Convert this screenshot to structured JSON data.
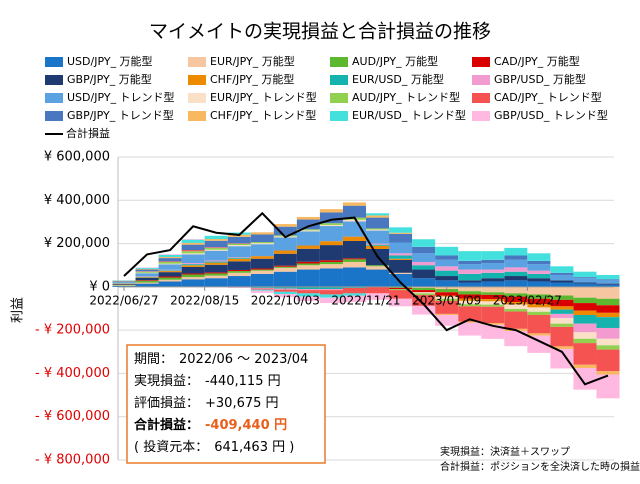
{
  "chart_data": {
    "type": "stacked-bar",
    "title": "マイメイトの実現損益と合計損益の推移",
    "y_label": "利益",
    "x": [
      "2022/06/27",
      "2022/07/11",
      "2022/07/25",
      "2022/08/08",
      "2022/08/22",
      "2022/09/05",
      "2022/09/19",
      "2022/10/03",
      "2022/10/17",
      "2022/10/31",
      "2022/11/14",
      "2022/11/28",
      "2022/12/12",
      "2022/12/26",
      "2023/01/09",
      "2023/01/23",
      "2023/02/06",
      "2023/02/20",
      "2023/03/06",
      "2023/03/20",
      "2023/04/03",
      "2023/04/17"
    ],
    "xticks": [
      "2022/06/27",
      "2022/08/15",
      "2022/10/03",
      "2022/11/21",
      "2023/01/09",
      "2023/02/27"
    ],
    "ylim": [
      -800000,
      600000
    ],
    "yticks": [
      {
        "value": 600000,
        "label": "¥ 600,000"
      },
      {
        "value": 400000,
        "label": "¥ 400,000"
      },
      {
        "value": 200000,
        "label": "¥ 200,000"
      },
      {
        "value": 0,
        "label": "¥ 0"
      },
      {
        "value": -200000,
        "label": "- ¥ 200,000"
      },
      {
        "value": -400000,
        "label": "- ¥ 400,000"
      },
      {
        "value": -600000,
        "label": "- ¥ 600,000"
      },
      {
        "value": -800000,
        "label": "- ¥ 800,000"
      }
    ],
    "grid": true,
    "series": [
      {
        "name": "USD/JPY_ 万能型",
        "color": "#1a74c8",
        "values": [
          5000,
          15000,
          25000,
          35000,
          40000,
          50000,
          60000,
          70000,
          80000,
          85000,
          90000,
          80000,
          60000,
          40000,
          30000,
          20000,
          25000,
          30000,
          25000,
          20000,
          15000,
          10000
        ]
      },
      {
        "name": "EUR/JPY_ 万能型",
        "color": "#f6c6a0",
        "values": [
          2000,
          5000,
          8000,
          10000,
          12000,
          15000,
          15000,
          18000,
          20000,
          20000,
          25000,
          15000,
          5000,
          -5000,
          -10000,
          -20000,
          -25000,
          -30000,
          -35000,
          -40000,
          -50000,
          -55000
        ]
      },
      {
        "name": "AUD/JPY_ 万能型",
        "color": "#5cb82e",
        "values": [
          3000,
          8000,
          10000,
          12000,
          10000,
          8000,
          5000,
          5000,
          8000,
          10000,
          12000,
          5000,
          -5000,
          -10000,
          -15000,
          -15000,
          -12000,
          -15000,
          -20000,
          -20000,
          -25000,
          -30000
        ]
      },
      {
        "name": "CAD/JPY_ 万能型",
        "color": "#d90000",
        "values": [
          1000,
          3000,
          5000,
          5000,
          5000,
          5000,
          5000,
          5000,
          8000,
          8000,
          5000,
          0,
          -5000,
          -10000,
          -15000,
          -20000,
          -20000,
          -25000,
          -25000,
          -30000,
          -35000,
          -35000
        ]
      },
      {
        "name": "GBP/JPY_ 万能型",
        "color": "#1f3a70",
        "values": [
          3000,
          10000,
          20000,
          30000,
          35000,
          40000,
          45000,
          55000,
          60000,
          70000,
          80000,
          75000,
          60000,
          40000,
          20000,
          10000,
          15000,
          20000,
          15000,
          10000,
          5000,
          5000
        ]
      },
      {
        "name": "CHF/JPY_ 万能型",
        "color": "#ee8a00",
        "values": [
          1000,
          3000,
          5000,
          8000,
          10000,
          12000,
          12000,
          15000,
          15000,
          18000,
          20000,
          15000,
          5000,
          0,
          -5000,
          -10000,
          -10000,
          -12000,
          -15000,
          -15000,
          -20000,
          -20000
        ]
      },
      {
        "name": "EUR/USD_ 万能型",
        "color": "#14b3ae",
        "values": [
          1000,
          2000,
          3000,
          5000,
          5000,
          5000,
          -5000,
          -8000,
          -10000,
          -10000,
          -5000,
          5000,
          15000,
          20000,
          25000,
          30000,
          25000,
          20000,
          20000,
          -20000,
          -40000,
          -50000
        ]
      },
      {
        "name": "GBP/USD_ 万能型",
        "color": "#f39ad0",
        "values": [
          1000,
          2000,
          3000,
          5000,
          5000,
          3000,
          -3000,
          -5000,
          -5000,
          -5000,
          0,
          5000,
          10000,
          15000,
          20000,
          20000,
          15000,
          20000,
          15000,
          -20000,
          -40000,
          -50000
        ]
      },
      {
        "name": "USD/JPY_ トレンド型",
        "color": "#5aa2e2",
        "values": [
          5000,
          15000,
          25000,
          40000,
          45000,
          50000,
          55000,
          60000,
          65000,
          70000,
          70000,
          60000,
          50000,
          40000,
          30000,
          25000,
          30000,
          35000,
          30000,
          25000,
          20000,
          15000
        ]
      },
      {
        "name": "EUR/JPY_ トレンド型",
        "color": "#fbe0c8",
        "values": [
          0,
          2000,
          3000,
          5000,
          5000,
          5000,
          5000,
          5000,
          5000,
          5000,
          8000,
          5000,
          0,
          -5000,
          -10000,
          -15000,
          -15000,
          -20000,
          -20000,
          -25000,
          -30000,
          -30000
        ]
      },
      {
        "name": "AUD/JPY_ トレンド型",
        "color": "#92d050",
        "values": [
          2000,
          5000,
          8000,
          10000,
          8000,
          6000,
          5000,
          5000,
          5000,
          8000,
          10000,
          5000,
          -5000,
          -8000,
          -10000,
          -10000,
          -10000,
          -12000,
          -15000,
          -15000,
          -20000,
          -20000
        ]
      },
      {
        "name": "CAD/JPY_ トレンド型",
        "color": "#f55252",
        "values": [
          1000,
          2000,
          3000,
          5000,
          3000,
          2000,
          -5000,
          -10000,
          -15000,
          -20000,
          -25000,
          -30000,
          -40000,
          -50000,
          -60000,
          -70000,
          -75000,
          -80000,
          -85000,
          -90000,
          -100000,
          -100000
        ]
      },
      {
        "name": "GBP/JPY_ トレンド型",
        "color": "#4a78c0",
        "values": [
          2000,
          8000,
          15000,
          25000,
          30000,
          30000,
          35000,
          40000,
          45000,
          50000,
          55000,
          50000,
          40000,
          30000,
          20000,
          15000,
          15000,
          20000,
          15000,
          10000,
          5000,
          5000
        ]
      },
      {
        "name": "CHF/JPY_ トレンド型",
        "color": "#f7b860",
        "values": [
          1000,
          3000,
          5000,
          8000,
          8000,
          10000,
          10000,
          12000,
          12000,
          15000,
          15000,
          10000,
          5000,
          0,
          -5000,
          -5000,
          -8000,
          -10000,
          -10000,
          -12000,
          -15000,
          -15000
        ]
      },
      {
        "name": "EUR/USD_ トレンド型",
        "color": "#44e0de",
        "values": [
          2000,
          5000,
          10000,
          15000,
          15000,
          10000,
          -5000,
          -10000,
          -15000,
          -15000,
          -10000,
          10000,
          25000,
          35000,
          40000,
          45000,
          40000,
          35000,
          35000,
          30000,
          25000,
          20000
        ]
      },
      {
        "name": "GBP/USD_ トレンド型",
        "color": "#ffb8e0",
        "values": [
          1000,
          2000,
          3000,
          3000,
          -2000,
          -5000,
          -10000,
          -15000,
          -20000,
          -25000,
          -30000,
          -30000,
          -35000,
          -40000,
          -50000,
          -60000,
          -65000,
          -70000,
          -80000,
          -90000,
          -100000,
          -110000
        ]
      }
    ],
    "line": {
      "name": "合計損益",
      "color": "#000000",
      "values": [
        50000,
        150000,
        170000,
        280000,
        250000,
        240000,
        340000,
        230000,
        280000,
        310000,
        320000,
        140000,
        20000,
        -80000,
        -200000,
        -150000,
        -180000,
        -200000,
        -250000,
        -300000,
        -450000,
        -410000
      ]
    },
    "info_box": [
      [
        "期間：",
        "2022/06 ～ 2023/04"
      ],
      [
        "実現損益：",
        "-440,115 円"
      ],
      [
        "評価損益：",
        "+30,675 円"
      ],
      [
        "合計損益：",
        "-409,440 円"
      ],
      [
        "( 投資元本：",
        "641,463 円 )"
      ]
    ],
    "notes": [
      "実現損益：決済益＋スワップ",
      "合計損益：ポジションを全決済した時の損益"
    ]
  }
}
